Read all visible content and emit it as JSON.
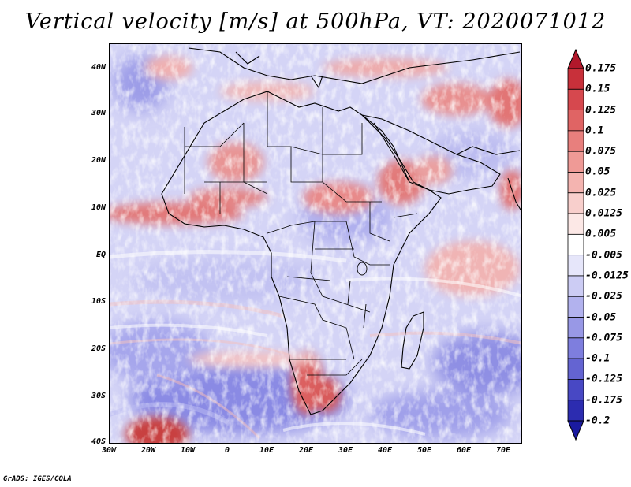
{
  "title": "Vertical velocity [m/s] at 500hPa, VT: 2020071012",
  "footer": "GrADS: IGES/COLA",
  "map": {
    "lon_ticks": [
      "30W",
      "20W",
      "10W",
      "0",
      "10E",
      "20E",
      "30E",
      "40E",
      "50E",
      "60E",
      "70E"
    ],
    "lat_ticks": [
      "40N",
      "30N",
      "20N",
      "10N",
      "EQ",
      "10S",
      "20S",
      "30S",
      "40S"
    ],
    "lon_range": [
      -30,
      75
    ],
    "lat_range": [
      -40,
      45
    ]
  },
  "colorbar": {
    "labels": [
      "0.175",
      "0.15",
      "0.125",
      "0.1",
      "0.075",
      "0.05",
      "0.025",
      "0.0125",
      "0.005",
      "-0.005",
      "-0.0125",
      "-0.025",
      "-0.05",
      "-0.075",
      "-0.1",
      "-0.125",
      "-0.175",
      "-0.2"
    ],
    "colors": [
      "#b2182b",
      "#c8303a",
      "#d6484e",
      "#e06464",
      "#e87f7d",
      "#ef9a96",
      "#f4b4b0",
      "#f8cfcc",
      "#fce8e6",
      "#ffffff",
      "#e6e6fa",
      "#ccccf4",
      "#b2b2ee",
      "#9898e6",
      "#7e7ede",
      "#6464d2",
      "#4848c4",
      "#2c2cb0",
      "#1a1aa0"
    ]
  }
}
